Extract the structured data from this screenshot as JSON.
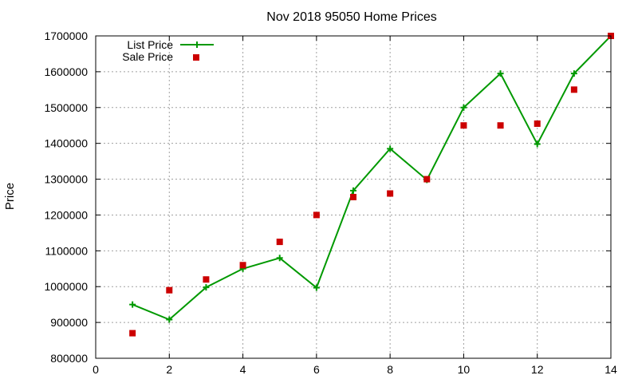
{
  "chart_data": {
    "type": "line",
    "title": "Nov 2018 95050 Home Prices",
    "xlabel": "",
    "ylabel": "Price",
    "xlim": [
      0,
      14
    ],
    "ylim": [
      800000,
      1700000
    ],
    "x_ticks": [
      0,
      2,
      4,
      6,
      8,
      10,
      12,
      14
    ],
    "y_ticks": [
      800000,
      900000,
      1000000,
      1100000,
      1200000,
      1300000,
      1400000,
      1500000,
      1600000,
      1700000
    ],
    "grid": true,
    "legend_position": "top-left",
    "series": [
      {
        "name": "List Price",
        "style": "line-with-plus-markers",
        "color": "#009900",
        "x": [
          1,
          2,
          3,
          4,
          5,
          6,
          7,
          8,
          9,
          10,
          11,
          12,
          13,
          14
        ],
        "values": [
          950000,
          908000,
          998000,
          1050000,
          1080000,
          997000,
          1268000,
          1385000,
          1298000,
          1500000,
          1595000,
          1398000,
          1595000,
          1700000
        ]
      },
      {
        "name": "Sale Price",
        "style": "square-markers",
        "color": "#cc0000",
        "x": [
          1,
          2,
          3,
          4,
          5,
          6,
          7,
          8,
          9,
          10,
          11,
          12,
          13,
          14
        ],
        "values": [
          870000,
          990000,
          1020000,
          1060000,
          1125000,
          1200000,
          1250000,
          1260000,
          1300000,
          1450000,
          1450000,
          1455000,
          1550000,
          1700000
        ]
      }
    ]
  }
}
